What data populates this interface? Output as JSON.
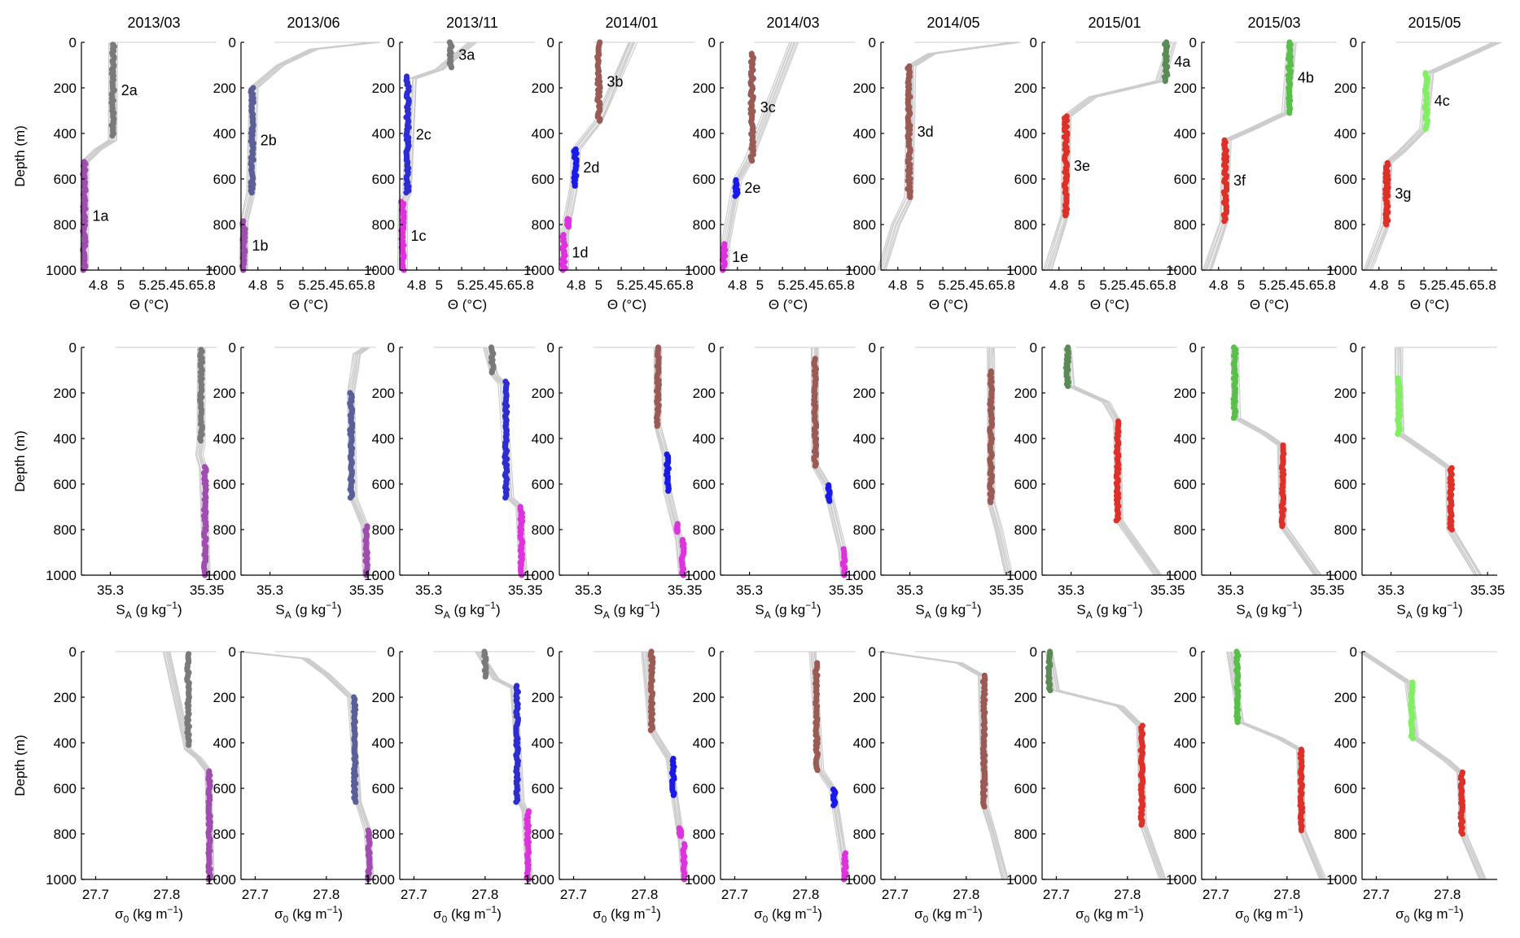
{
  "columns": [
    "2013/03",
    "2013/06",
    "2013/11",
    "2014/01",
    "2014/03",
    "2014/05",
    "2015/01",
    "2015/03",
    "2015/05"
  ],
  "ylabel": "Depth (m)",
  "row_xlabels": [
    "Θ (°C)",
    "S_A (g kg⁻¹)",
    "σ₀ (kg m⁻¹)"
  ],
  "x_tick_labels": {
    "theta": [
      "4.8",
      "5",
      "5.25.45.65.8"
    ],
    "salinity": [
      "35.3",
      "35.35"
    ],
    "sigma": [
      "27.7",
      "27.8"
    ]
  },
  "y_tick_labels": [
    "0",
    "200",
    "400",
    "600",
    "800",
    "1000"
  ],
  "colors": {
    "grey": "#7a7a7a",
    "purple": "#a04cb0",
    "slate": "#5a5f98",
    "magenta": "#dd33dd",
    "blue": "#2d2dd0",
    "brightblue": "#1a1ae8",
    "brown": "#9a5a55",
    "red": "#dd3028",
    "darkgreen": "#5a8a55",
    "green": "#58c048",
    "lightgreen": "#80f060",
    "envelope": "#cccccc"
  },
  "chart_data": {
    "type": "scatter",
    "layout": "3 rows x 9 columns of depth-profile panels",
    "y_axis": {
      "label": "Depth (m)",
      "range": [
        0,
        1000
      ],
      "inverted": true,
      "ticks": [
        0,
        200,
        400,
        600,
        800,
        1000
      ]
    },
    "rows": [
      {
        "variable": "theta",
        "xlabel": "Θ (°C)",
        "x_range": [
          4.65,
          5.85
        ],
        "ticks": [
          4.8,
          5.0,
          5.2,
          5.4,
          5.6,
          5.8
        ]
      },
      {
        "variable": "salinity",
        "xlabel": "S_A (g kg⁻¹)",
        "x_range": [
          35.285,
          35.355
        ],
        "ticks": [
          35.3,
          35.35
        ]
      },
      {
        "variable": "sigma",
        "xlabel": "σ₀ (kg m⁻¹)",
        "x_range": [
          27.68,
          27.87
        ],
        "ticks": [
          27.7,
          27.8
        ]
      }
    ],
    "panels": [
      {
        "date": "2013/03",
        "segments": [
          {
            "label": "2a",
            "color": "grey",
            "d0": 10,
            "d1": 410,
            "theta": 4.93,
            "sal": 35.347,
            "sig": 27.83
          },
          {
            "label": "1a",
            "color": "purple",
            "d0": 525,
            "d1": 1000,
            "theta": 4.675,
            "sal": 35.349,
            "sig": 27.86
          }
        ],
        "envelope": [
          {
            "d": 0,
            "theta": 4.93,
            "sal": 35.347,
            "sig": 27.8
          },
          {
            "d": 430,
            "theta": 4.93,
            "sal": 35.347,
            "sig": 27.83
          },
          {
            "d": 470,
            "theta": 4.8,
            "sal": 35.346,
            "sig": 27.845
          },
          {
            "d": 525,
            "theta": 4.68,
            "sal": 35.348,
            "sig": 27.858
          },
          {
            "d": 1000,
            "theta": 4.675,
            "sal": 35.35,
            "sig": 27.862
          }
        ]
      },
      {
        "date": "2013/06",
        "segments": [
          {
            "label": "2b",
            "color": "slate",
            "d0": 200,
            "d1": 660,
            "theta": 4.75,
            "sal": 35.342,
            "sig": 27.84
          },
          {
            "label": "1b",
            "color": "purple",
            "d0": 785,
            "d1": 1000,
            "theta": 4.675,
            "sal": 35.35,
            "sig": 27.86
          }
        ],
        "envelope": [
          {
            "d": 0,
            "theta": 5.85,
            "sal": 35.35,
            "sig": 27.68
          },
          {
            "d": 30,
            "theta": 5.3,
            "sal": 35.345,
            "sig": 27.77
          },
          {
            "d": 100,
            "theta": 5.0,
            "sal": 35.344,
            "sig": 27.8
          },
          {
            "d": 200,
            "theta": 4.76,
            "sal": 35.342,
            "sig": 27.835
          },
          {
            "d": 660,
            "theta": 4.74,
            "sal": 35.343,
            "sig": 27.845
          },
          {
            "d": 785,
            "theta": 4.68,
            "sal": 35.349,
            "sig": 27.858
          },
          {
            "d": 1000,
            "theta": 4.675,
            "sal": 35.35,
            "sig": 27.862
          }
        ]
      },
      {
        "date": "2013/11",
        "segments": [
          {
            "label": "3a",
            "color": "grey",
            "d0": 0,
            "d1": 110,
            "theta": 5.1,
            "sal": 35.333,
            "sig": 27.8
          },
          {
            "label": "2c",
            "color": "blue",
            "d0": 150,
            "d1": 660,
            "theta": 4.72,
            "sal": 35.34,
            "sig": 27.845
          },
          {
            "label": "1c",
            "color": "magenta",
            "d0": 700,
            "d1": 1000,
            "theta": 4.675,
            "sal": 35.348,
            "sig": 27.86
          }
        ],
        "envelope": [
          {
            "d": 0,
            "theta": 5.3,
            "sal": 35.33,
            "sig": 27.79
          },
          {
            "d": 120,
            "theta": 5.0,
            "sal": 35.334,
            "sig": 27.815
          },
          {
            "d": 160,
            "theta": 4.76,
            "sal": 35.338,
            "sig": 27.84
          },
          {
            "d": 660,
            "theta": 4.72,
            "sal": 35.342,
            "sig": 27.85
          },
          {
            "d": 700,
            "theta": 4.68,
            "sal": 35.347,
            "sig": 27.856
          },
          {
            "d": 1000,
            "theta": 4.675,
            "sal": 35.349,
            "sig": 27.862
          }
        ]
      },
      {
        "date": "2014/01",
        "segments": [
          {
            "label": "3b",
            "color": "brown",
            "d0": 0,
            "d1": 345,
            "theta": 5.0,
            "sal": 35.336,
            "sig": 27.81
          },
          {
            "label": "2d",
            "color": "brightblue",
            "d0": 470,
            "d1": 630,
            "theta": 4.79,
            "sal": 35.341,
            "sig": 27.84
          },
          {
            "label": "",
            "color": "magenta",
            "d0": 775,
            "d1": 810,
            "theta": 4.73,
            "sal": 35.346,
            "sig": 27.85
          },
          {
            "label": "1d",
            "color": "magenta",
            "d0": 845,
            "d1": 1000,
            "theta": 4.69,
            "sal": 35.349,
            "sig": 27.855
          }
        ],
        "envelope": [
          {
            "d": 0,
            "theta": 5.3,
            "sal": 35.336,
            "sig": 27.8
          },
          {
            "d": 345,
            "theta": 5.0,
            "sal": 35.336,
            "sig": 27.81
          },
          {
            "d": 470,
            "theta": 4.8,
            "sal": 35.34,
            "sig": 27.835
          },
          {
            "d": 630,
            "theta": 4.78,
            "sal": 35.341,
            "sig": 27.842
          },
          {
            "d": 845,
            "theta": 4.7,
            "sal": 35.347,
            "sig": 27.852
          },
          {
            "d": 1000,
            "theta": 4.69,
            "sal": 35.349,
            "sig": 27.856
          }
        ]
      },
      {
        "date": "2014/03",
        "segments": [
          {
            "label": "3c",
            "color": "brown",
            "d0": 50,
            "d1": 520,
            "theta": 4.93,
            "sal": 35.334,
            "sig": 27.815
          },
          {
            "label": "2e",
            "color": "brightblue",
            "d0": 605,
            "d1": 675,
            "theta": 4.79,
            "sal": 35.341,
            "sig": 27.84
          },
          {
            "label": "1e",
            "color": "magenta",
            "d0": 885,
            "d1": 1000,
            "theta": 4.68,
            "sal": 35.349,
            "sig": 27.855
          }
        ],
        "envelope": [
          {
            "d": 0,
            "theta": 5.3,
            "sal": 35.334,
            "sig": 27.81
          },
          {
            "d": 520,
            "theta": 4.9,
            "sal": 35.334,
            "sig": 27.82
          },
          {
            "d": 605,
            "theta": 4.8,
            "sal": 35.34,
            "sig": 27.838
          },
          {
            "d": 885,
            "theta": 4.7,
            "sal": 35.348,
            "sig": 27.852
          },
          {
            "d": 1000,
            "theta": 4.68,
            "sal": 35.349,
            "sig": 27.856
          }
        ]
      },
      {
        "date": "2014/05",
        "segments": [
          {
            "label": "3d",
            "color": "brown",
            "d0": 105,
            "d1": 680,
            "theta": 4.9,
            "sal": 35.342,
            "sig": 27.825
          }
        ],
        "envelope": [
          {
            "d": 0,
            "theta": 5.85,
            "sal": 35.342,
            "sig": 27.68
          },
          {
            "d": 50,
            "theta": 5.1,
            "sal": 35.342,
            "sig": 27.79
          },
          {
            "d": 105,
            "theta": 4.92,
            "sal": 35.342,
            "sig": 27.822
          },
          {
            "d": 680,
            "theta": 4.9,
            "sal": 35.342,
            "sig": 27.826
          },
          {
            "d": 800,
            "theta": 4.78,
            "sal": 35.346,
            "sig": 27.838
          },
          {
            "d": 1000,
            "theta": 4.66,
            "sal": 35.351,
            "sig": 27.855
          }
        ]
      },
      {
        "date": "2015/01",
        "segments": [
          {
            "label": "4a",
            "color": "darkgreen",
            "d0": 0,
            "d1": 170,
            "theta": 5.75,
            "sal": 35.298,
            "sig": 27.69
          },
          {
            "label": "3e",
            "color": "red",
            "d0": 325,
            "d1": 760,
            "theta": 4.86,
            "sal": 35.324,
            "sig": 27.82
          }
        ],
        "envelope": [
          {
            "d": 0,
            "theta": 5.8,
            "sal": 35.298,
            "sig": 27.69
          },
          {
            "d": 170,
            "theta": 5.7,
            "sal": 35.3,
            "sig": 27.7
          },
          {
            "d": 240,
            "theta": 5.1,
            "sal": 35.318,
            "sig": 27.79
          },
          {
            "d": 325,
            "theta": 4.87,
            "sal": 35.324,
            "sig": 27.818
          },
          {
            "d": 760,
            "theta": 4.85,
            "sal": 35.325,
            "sig": 27.822
          },
          {
            "d": 1000,
            "theta": 4.7,
            "sal": 35.345,
            "sig": 27.85
          }
        ]
      },
      {
        "date": "2015/03",
        "segments": [
          {
            "label": "4b",
            "color": "green",
            "d0": 0,
            "d1": 310,
            "theta": 5.43,
            "sal": 35.302,
            "sig": 27.73
          },
          {
            "label": "3f",
            "color": "red",
            "d0": 430,
            "d1": 785,
            "theta": 4.86,
            "sal": 35.327,
            "sig": 27.82
          }
        ],
        "envelope": [
          {
            "d": 0,
            "theta": 5.45,
            "sal": 35.302,
            "sig": 27.72
          },
          {
            "d": 310,
            "theta": 5.4,
            "sal": 35.303,
            "sig": 27.735
          },
          {
            "d": 380,
            "theta": 5.1,
            "sal": 35.318,
            "sig": 27.79
          },
          {
            "d": 430,
            "theta": 4.87,
            "sal": 35.326,
            "sig": 27.818
          },
          {
            "d": 785,
            "theta": 4.85,
            "sal": 35.327,
            "sig": 27.822
          },
          {
            "d": 1000,
            "theta": 4.7,
            "sal": 35.345,
            "sig": 27.85
          }
        ]
      },
      {
        "date": "2015/05",
        "segments": [
          {
            "label": "4c",
            "color": "lightgreen",
            "d0": 135,
            "d1": 380,
            "theta": 5.22,
            "sal": 35.304,
            "sig": 27.75
          },
          {
            "label": "3g",
            "color": "red",
            "d0": 530,
            "d1": 800,
            "theta": 4.87,
            "sal": 35.331,
            "sig": 27.82
          }
        ],
        "envelope": [
          {
            "d": 0,
            "theta": 5.85,
            "sal": 35.304,
            "sig": 27.68
          },
          {
            "d": 135,
            "theta": 5.25,
            "sal": 35.304,
            "sig": 27.745
          },
          {
            "d": 380,
            "theta": 5.2,
            "sal": 35.305,
            "sig": 27.755
          },
          {
            "d": 480,
            "theta": 5.0,
            "sal": 35.322,
            "sig": 27.8
          },
          {
            "d": 530,
            "theta": 4.88,
            "sal": 35.33,
            "sig": 27.818
          },
          {
            "d": 800,
            "theta": 4.86,
            "sal": 35.331,
            "sig": 27.822
          },
          {
            "d": 1000,
            "theta": 4.7,
            "sal": 35.345,
            "sig": 27.85
          }
        ]
      }
    ]
  }
}
